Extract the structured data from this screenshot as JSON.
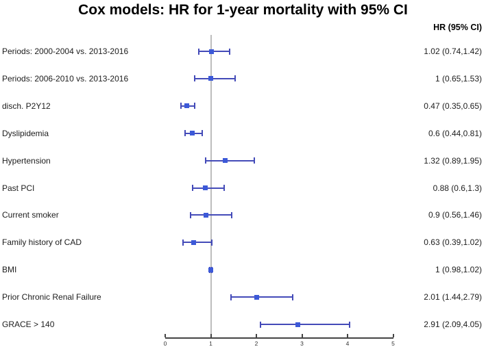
{
  "chart_data": {
    "type": "forest",
    "title": "Cox models: HR for 1-year mortality with 95% CI",
    "column_header": "HR (95% CI)",
    "rows": [
      {
        "label": "Periods: 2000-2004 vs. 2013-2016",
        "hr": 1.02,
        "lo": 0.74,
        "hi": 1.42,
        "ci_text": "1.02 (0.74,1.42)"
      },
      {
        "label": "Periods: 2006-2010 vs. 2013-2016",
        "hr": 1.0,
        "lo": 0.65,
        "hi": 1.53,
        "ci_text": "1 (0.65,1.53)"
      },
      {
        "label": "disch. P2Y12",
        "hr": 0.47,
        "lo": 0.35,
        "hi": 0.65,
        "ci_text": "0.47 (0.35,0.65)"
      },
      {
        "label": "Dyslipidemia",
        "hr": 0.6,
        "lo": 0.44,
        "hi": 0.81,
        "ci_text": "0.6 (0.44,0.81)"
      },
      {
        "label": "Hypertension",
        "hr": 1.32,
        "lo": 0.89,
        "hi": 1.95,
        "ci_text": "1.32 (0.89,1.95)"
      },
      {
        "label": "Past PCI",
        "hr": 0.88,
        "lo": 0.6,
        "hi": 1.3,
        "ci_text": "0.88 (0.6,1.3)"
      },
      {
        "label": "Current smoker",
        "hr": 0.9,
        "lo": 0.56,
        "hi": 1.46,
        "ci_text": "0.9 (0.56,1.46)"
      },
      {
        "label": "Family history of CAD",
        "hr": 0.63,
        "lo": 0.39,
        "hi": 1.02,
        "ci_text": "0.63 (0.39,1.02)"
      },
      {
        "label": "BMI",
        "hr": 1.0,
        "lo": 0.98,
        "hi": 1.02,
        "ci_text": "1 (0.98,1.02)"
      },
      {
        "label": "Prior Chronic Renal Failure",
        "hr": 2.01,
        "lo": 1.44,
        "hi": 2.79,
        "ci_text": "2.01 (1.44,2.79)"
      },
      {
        "label": "GRACE > 140",
        "hr": 2.91,
        "lo": 2.09,
        "hi": 4.05,
        "ci_text": "2.91 (2.09,4.05)"
      }
    ],
    "axis": {
      "min": 0,
      "max": 5,
      "ticks": [
        0,
        1,
        2,
        3,
        4,
        5
      ]
    },
    "reference_line": 1,
    "grid": false,
    "legend": "none",
    "colors": {
      "bar": "#434ab8",
      "marker": "#3c59d8",
      "reference_line": "#bdbdbd",
      "axis": "#444444",
      "text": "#1c1c1c"
    }
  }
}
